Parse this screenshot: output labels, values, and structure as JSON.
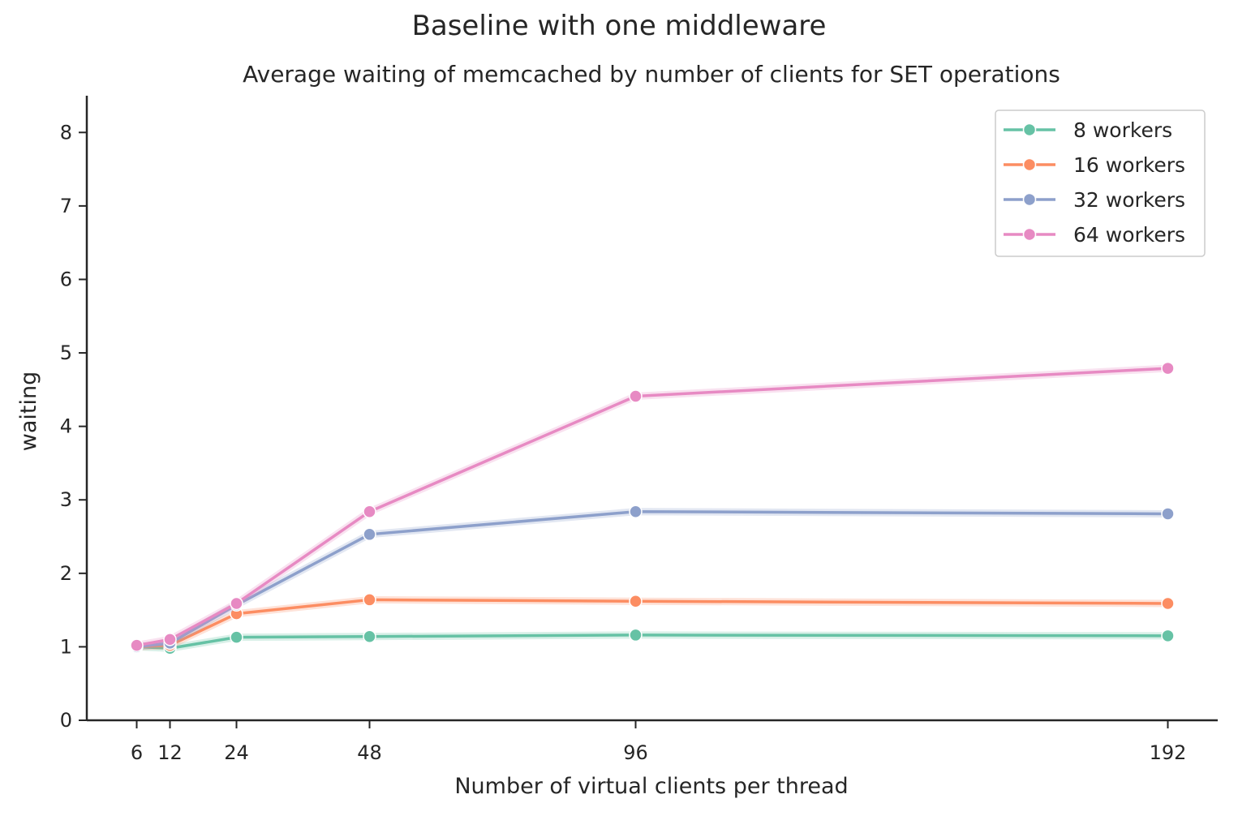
{
  "suptitle": "Baseline with one middleware",
  "chart_data": {
    "type": "line",
    "title": "Average waiting of memcached by number of clients for SET operations",
    "xlabel": "Number of virtual clients per thread",
    "ylabel": "waiting",
    "x": [
      6,
      12,
      24,
      48,
      96,
      192
    ],
    "x_ticks": [
      "6",
      "12",
      "24",
      "48",
      "96",
      "192"
    ],
    "xlim": [
      -3,
      201
    ],
    "y_ticks": [
      "0",
      "1",
      "2",
      "3",
      "4",
      "5",
      "6",
      "7",
      "8"
    ],
    "ylim": [
      0,
      8.5
    ],
    "grid": false,
    "legend_position": "top-right",
    "series": [
      {
        "name": "8 workers",
        "color": "#66c2a5",
        "values": [
          1.0,
          0.98,
          1.13,
          1.14,
          1.16,
          1.15
        ]
      },
      {
        "name": "16 workers",
        "color": "#fc8d62",
        "values": [
          1.0,
          1.02,
          1.45,
          1.64,
          1.62,
          1.59
        ]
      },
      {
        "name": "32 workers",
        "color": "#8da0cb",
        "values": [
          1.0,
          1.05,
          1.57,
          2.53,
          2.84,
          2.81
        ]
      },
      {
        "name": "64 workers",
        "color": "#e78ac3",
        "values": [
          1.02,
          1.1,
          1.59,
          2.84,
          4.41,
          4.79
        ]
      }
    ]
  }
}
